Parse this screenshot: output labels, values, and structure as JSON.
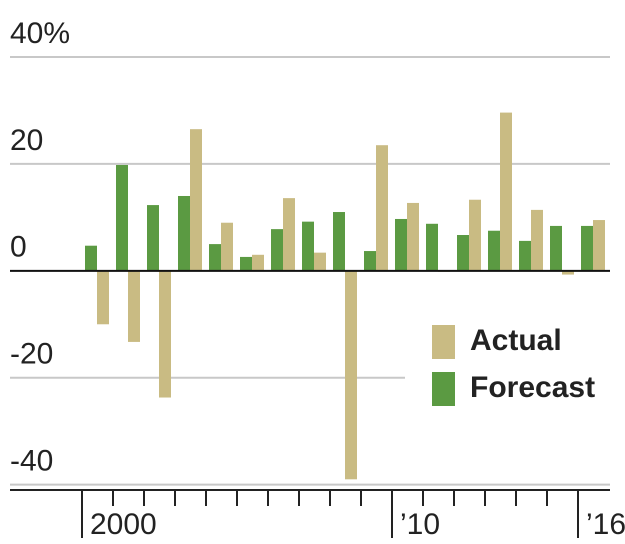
{
  "chart_data": {
    "type": "bar",
    "categories": [
      "2000",
      null,
      null,
      null,
      null,
      null,
      null,
      null,
      null,
      null,
      "’10",
      null,
      null,
      null,
      null,
      null,
      "’16"
    ],
    "series": [
      {
        "name": "Forecast",
        "color": "#5b9a42",
        "values": [
          4.7,
          19.8,
          12.3,
          14,
          5,
          2.6,
          7.8,
          9.2,
          11,
          3.7,
          9.7,
          8.8,
          6.7,
          7.5,
          5.6,
          8.4,
          8.4
        ]
      },
      {
        "name": "Actual",
        "color": "#c9bb83",
        "values": [
          -10,
          -13.3,
          -23.7,
          26.5,
          9,
          3,
          13.6,
          3.4,
          -39,
          23.5,
          12.7,
          0,
          13.3,
          29.6,
          11.4,
          -0.7,
          9.5
        ]
      }
    ],
    "ylim": [
      -41,
      40
    ],
    "yticks": [
      {
        "value": 40,
        "label": "40%"
      },
      20,
      0,
      -20,
      -40
    ],
    "grid": true
  }
}
